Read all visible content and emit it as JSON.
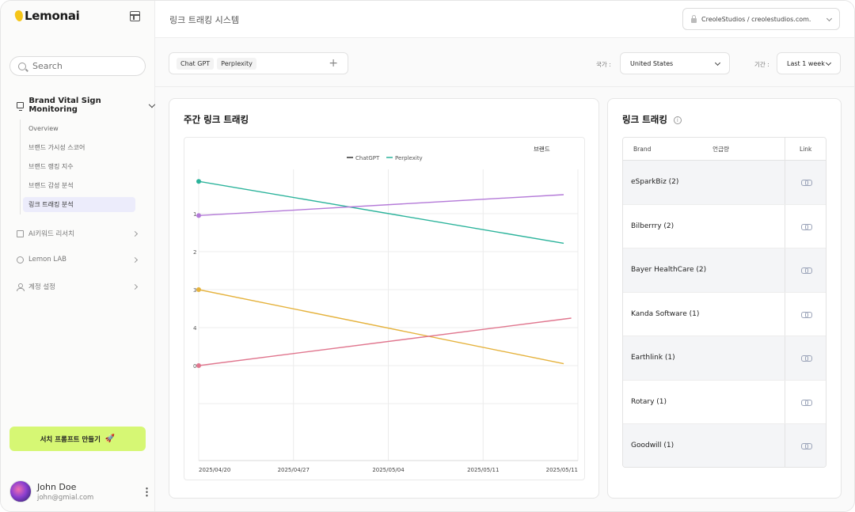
{
  "app": {
    "name": "Lemonai"
  },
  "sidebar": {
    "search_placeholder": "Search",
    "group": {
      "label": "Brand Vital Sign Monitoring",
      "items": [
        {
          "label": "Overview"
        },
        {
          "label": "브랜드 가시성 스코어"
        },
        {
          "label": "브랜드 랭킹 지수"
        },
        {
          "label": "브랜드 감성 분석"
        },
        {
          "label": "링크 트래킹 분석"
        }
      ]
    },
    "nav": [
      {
        "label": "AI키워드 리서치",
        "icon": "document-icon"
      },
      {
        "label": "Lemon LAB",
        "icon": "lab-icon"
      },
      {
        "label": "계정 설정",
        "icon": "user-icon"
      }
    ],
    "cta_label": "서치 프롬프트 만들기",
    "user": {
      "name": "John Doe",
      "email": "john@gmial.com"
    }
  },
  "header": {
    "title": "링크 트래킹 시스템",
    "workspace": "CreoleStudios / creolestudios.com."
  },
  "filters": {
    "models": [
      "Chat GPT",
      "Perplexity"
    ],
    "country_label": "국가 :",
    "country_value": "United States",
    "period_label": "기간 :",
    "period_value": "Last 1 week"
  },
  "chart_card": {
    "title": "주간 링크 트래킹"
  },
  "table_card": {
    "title": "링크 트래킹",
    "columns": {
      "brand": "Brand",
      "count": "언급량",
      "link": "Link"
    },
    "rows": [
      {
        "brand": "eSparkBiz (2)"
      },
      {
        "brand": "Bilberrry (2)"
      },
      {
        "brand": "Bayer HealthCare (2)"
      },
      {
        "brand": "Kanda Software (1)"
      },
      {
        "brand": "Earthlink (1)"
      },
      {
        "brand": "Rotary (1)"
      },
      {
        "brand": "Goodwill (1)"
      }
    ]
  },
  "chart_data": {
    "type": "line",
    "title": "",
    "legend_title": "브랜드",
    "legend": [
      {
        "name": "ChatGPT",
        "color": "#333333"
      },
      {
        "name": "Perplexity",
        "color": "#2bb39b"
      }
    ],
    "legend_placement": "top-center",
    "x": [
      "2025/04/20",
      "2025/04/27",
      "2025/05/04",
      "2025/05/11",
      "2025/05/11"
    ],
    "y_ticks": [
      "1",
      "2",
      "3",
      "4",
      "0"
    ],
    "grid": true,
    "series": [
      {
        "color": "#2bb39b",
        "points": [
          [
            0,
            0.15
          ],
          [
            3.85,
            1.78
          ]
        ]
      },
      {
        "color": "#b47ad8",
        "points": [
          [
            0,
            1.05
          ],
          [
            3.85,
            0.5
          ]
        ]
      },
      {
        "color": "#e5b23c",
        "points": [
          [
            0,
            3.0
          ],
          [
            3.85,
            4.95
          ]
        ]
      },
      {
        "color": "#e0768e",
        "points": [
          [
            0,
            5.0
          ],
          [
            3.93,
            3.75
          ]
        ]
      }
    ]
  }
}
